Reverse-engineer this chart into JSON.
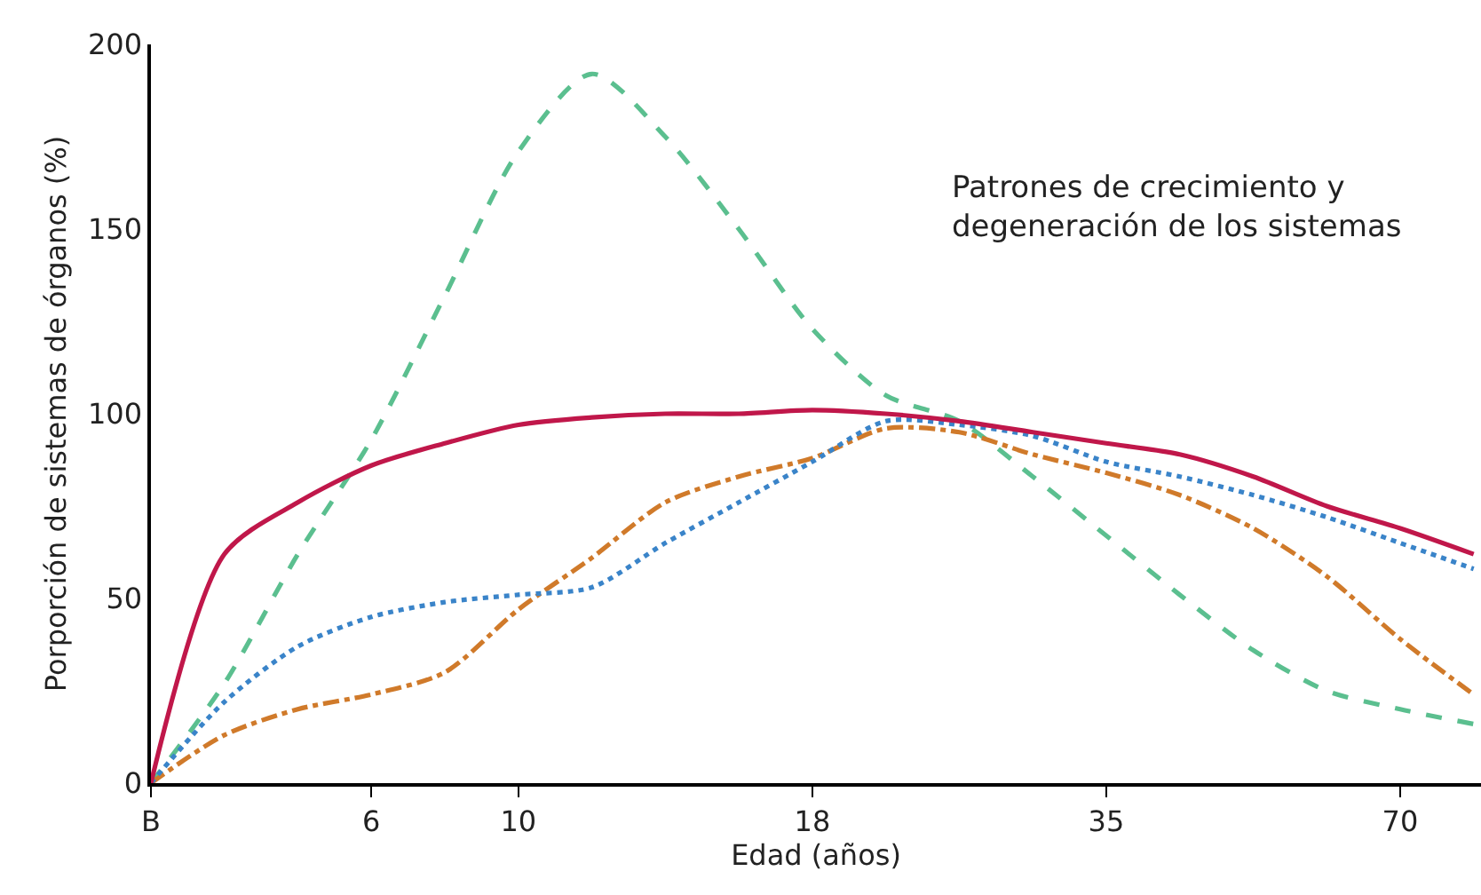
{
  "chart_data": {
    "type": "line",
    "xlabel": "Edad (años)",
    "ylabel": "Porporción de sistemas de órganos (%)",
    "annotations": [
      "Patrones de crecimiento y\ndegeneración de los sistemas"
    ],
    "categories": [
      "B",
      null,
      null,
      "6",
      null,
      "10",
      null,
      null,
      null,
      "18",
      null,
      null,
      null,
      "35",
      null,
      null,
      null,
      "70",
      null
    ],
    "ylim": [
      0,
      200
    ],
    "yticks": [
      0,
      50,
      100,
      150,
      200
    ],
    "marker": "none",
    "series": [
      {
        "color": "#5bbf8f",
        "line_style": "dashed",
        "values": [
          0,
          27,
          62,
          93,
          132,
          171,
          192,
          175,
          150,
          123,
          105,
          98,
          83,
          67,
          51,
          36,
          25,
          20,
          16
        ]
      },
      {
        "color": "#d07a2a",
        "line_style": "dashdot",
        "values": [
          0,
          13,
          20,
          24,
          30,
          47,
          61,
          76,
          83,
          88,
          96,
          95,
          89,
          84,
          78,
          69,
          56,
          39,
          24
        ]
      },
      {
        "color": "#3a84c9",
        "line_style": "dotted",
        "values": [
          0,
          22,
          37,
          45,
          49,
          51,
          53,
          65,
          76,
          87,
          98,
          97,
          94,
          87,
          83,
          78,
          72,
          65,
          58
        ]
      },
      {
        "color": "#c0174a",
        "line_style": "solid",
        "values": [
          0,
          62,
          76,
          86,
          92,
          97,
          99,
          100,
          100,
          101,
          100,
          98,
          95,
          92,
          89,
          83,
          75,
          69,
          62
        ]
      }
    ]
  }
}
